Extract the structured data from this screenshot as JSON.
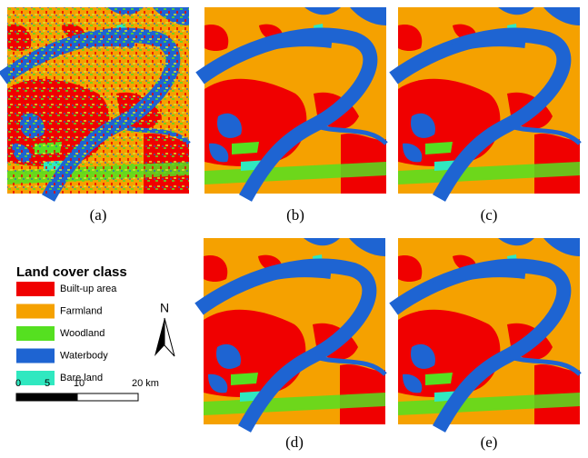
{
  "panels": [
    {
      "label": "(a)"
    },
    {
      "label": "(b)"
    },
    {
      "label": "(c)"
    },
    {
      "label": "(d)"
    },
    {
      "label": "(e)"
    }
  ],
  "legend": {
    "title": "Land cover class",
    "items": [
      {
        "name": "Built-up area",
        "color": "#f00000"
      },
      {
        "name": "Farmland",
        "color": "#f5a100"
      },
      {
        "name": "Woodland",
        "color": "#55e020"
      },
      {
        "name": "Waterbody",
        "color": "#1e64d2"
      },
      {
        "name": "Bare land",
        "color": "#30e8c0"
      }
    ]
  },
  "north": "N",
  "scale_bar": {
    "labels": [
      "0",
      "5",
      "10",
      "20 km"
    ]
  }
}
